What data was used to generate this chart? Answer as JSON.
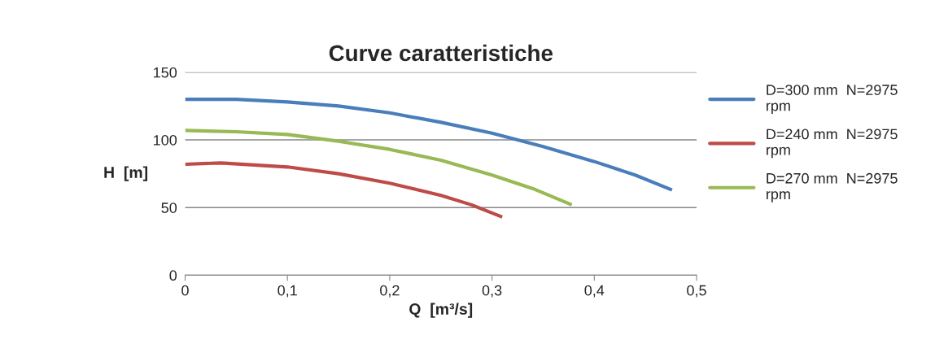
{
  "chart_data": {
    "type": "line",
    "title": "Curve caratteristiche",
    "xlabel": "Q  [m³/s]",
    "ylabel": "H  [m]",
    "xlim": [
      0,
      0.5
    ],
    "xticks": [
      0,
      {
        "value": 0.1,
        "label": "0,1"
      },
      {
        "value": 0.2,
        "label": "0,2"
      },
      {
        "value": 0.3,
        "label": "0,3"
      },
      {
        "value": 0.4,
        "label": "0,4"
      },
      {
        "value": 0.5,
        "label": "0,5"
      }
    ],
    "ylim": [
      0,
      150
    ],
    "yticks": [
      0,
      50,
      100,
      150
    ],
    "grid": "y",
    "legend": "right",
    "marker": "none",
    "line_style": "solid",
    "series": [
      {
        "name": "D=300 mm  N=2975 rpm",
        "color": "#4a7ebb",
        "x": [
          0,
          0.05,
          0.1,
          0.15,
          0.2,
          0.25,
          0.3,
          0.35,
          0.4,
          0.44,
          0.476
        ],
        "values": [
          130,
          130,
          128,
          125,
          120,
          113,
          105,
          95,
          84,
          74,
          63
        ]
      },
      {
        "name": "D=240 mm  N=2975 rpm",
        "color": "#be4b48",
        "x": [
          0,
          0.035,
          0.1,
          0.15,
          0.2,
          0.25,
          0.28,
          0.31
        ],
        "values": [
          82,
          83,
          80,
          75,
          68,
          59,
          52,
          43
        ]
      },
      {
        "name": "D=270 mm  N=2975 rpm",
        "color": "#98b954",
        "x": [
          0,
          0.05,
          0.1,
          0.15,
          0.2,
          0.25,
          0.3,
          0.34,
          0.378
        ],
        "values": [
          107,
          106,
          104,
          99,
          93,
          85,
          74,
          64,
          52
        ]
      }
    ]
  }
}
